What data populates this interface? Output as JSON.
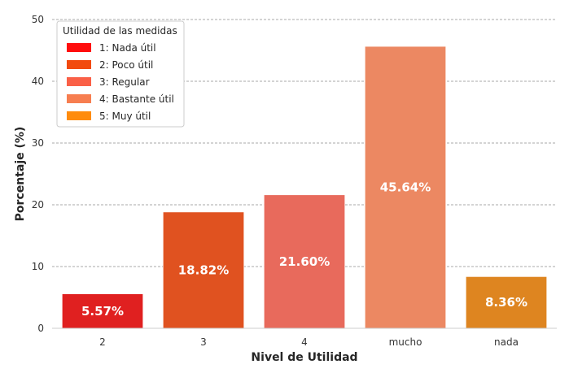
{
  "chart_data": {
    "type": "bar",
    "categories": [
      "2",
      "3",
      "4",
      "mucho",
      "nada"
    ],
    "values": [
      5.57,
      18.82,
      21.6,
      45.64,
      8.36
    ],
    "data_labels": [
      "5.57%",
      "18.82%",
      "21.60%",
      "45.64%",
      "8.36%"
    ],
    "bar_colors": [
      "#e02020",
      "#e05220",
      "#e86a5c",
      "#ec8862",
      "#de8520"
    ],
    "xlabel": "Nivel de Utilidad",
    "ylabel": "Porcentaje (%)",
    "ylim": [
      0,
      50
    ],
    "yticks": [
      0,
      10,
      20,
      30,
      40,
      50
    ],
    "grid": "horizontal-dashed",
    "legend": {
      "placement": "top-left",
      "title": "Utilidad de las medidas",
      "entries": [
        {
          "label": "1: Nada útil",
          "color": "#ff0d0d"
        },
        {
          "label": "2: Poco útil",
          "color": "#f24a0e"
        },
        {
          "label": "3: Regular",
          "color": "#fa6047"
        },
        {
          "label": "4: Bastante útil",
          "color": "#f77e50"
        },
        {
          "label": "5: Muy útil",
          "color": "#ff8c0d"
        }
      ]
    }
  }
}
